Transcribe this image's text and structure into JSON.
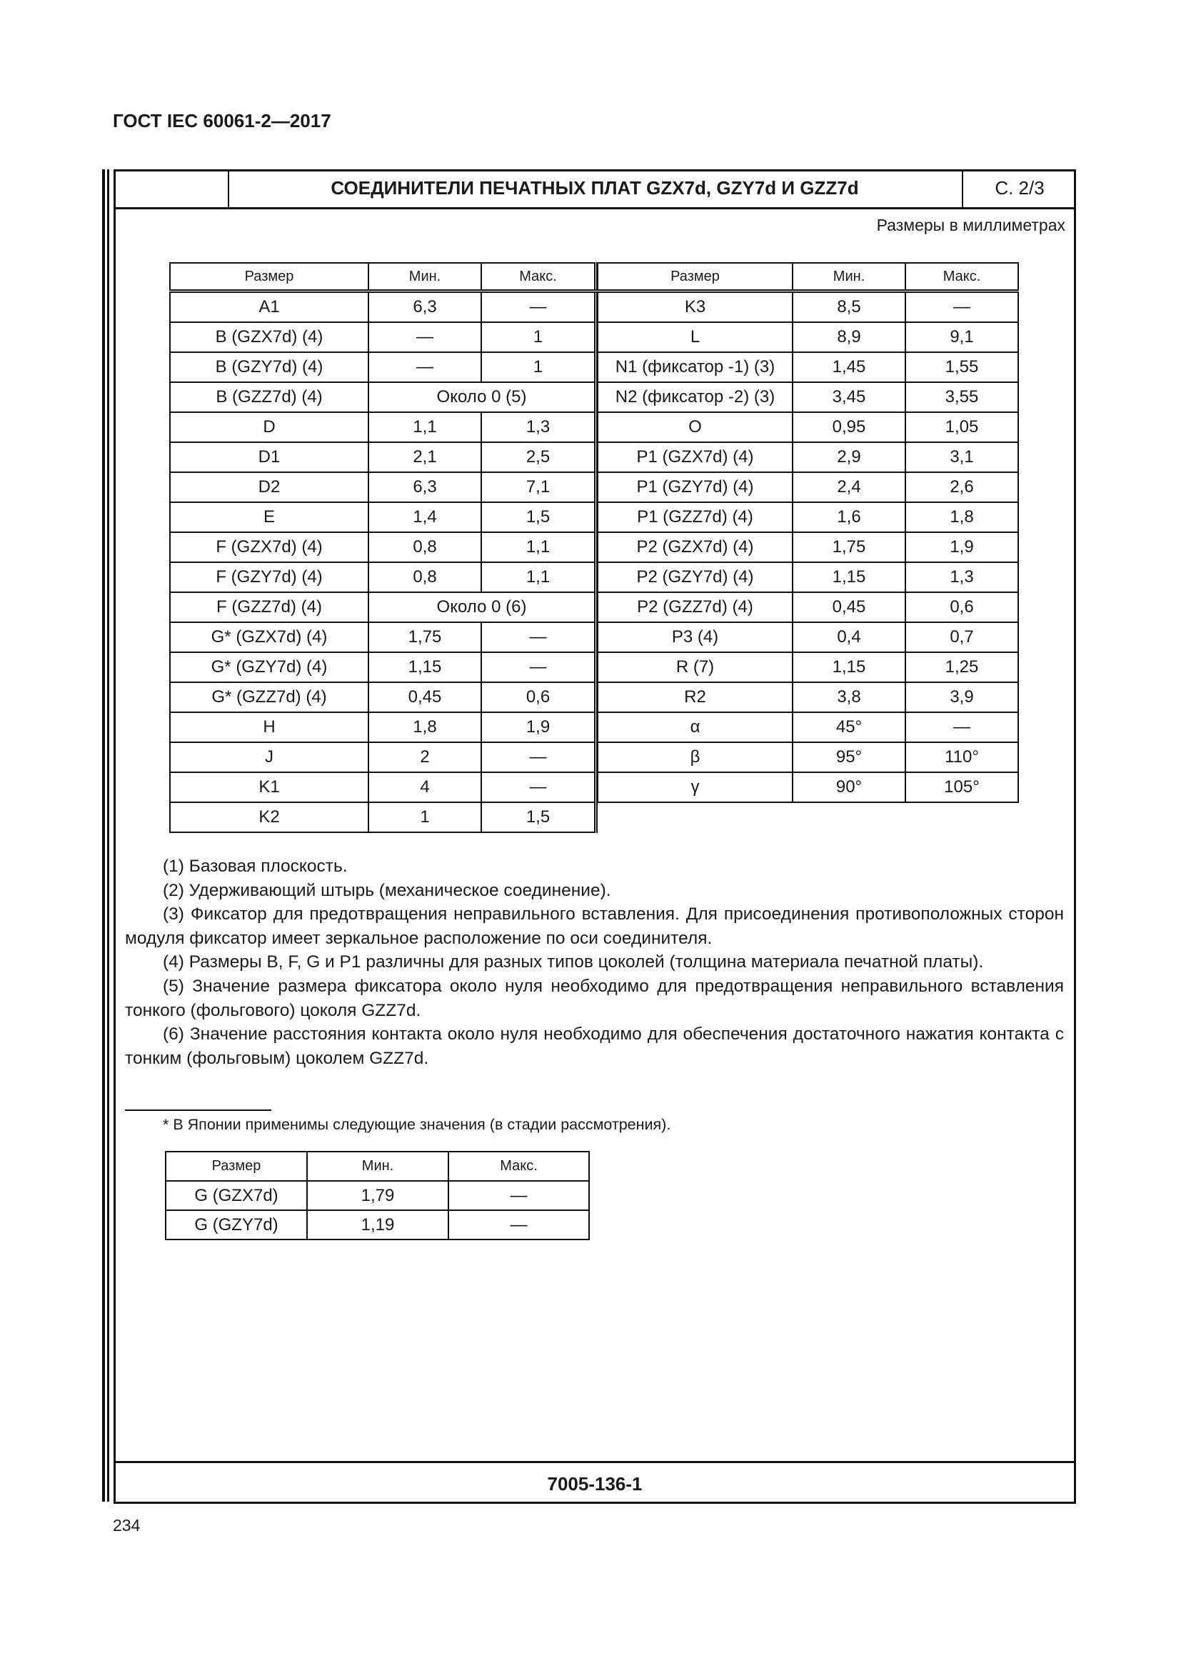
{
  "doc_header": "ГОСТ IEC 60061-2—2017",
  "sheet": {
    "title": "СОЕДИНИТЕЛИ ПЕЧАТНЫХ ПЛАТ GZX7d, GZY7d И GZZ7d",
    "page": "С. 2/3",
    "units": "Размеры в миллиметрах",
    "code": "7005-136-1"
  },
  "table_left": {
    "headers": [
      "Размер",
      "Мин.",
      "Макс."
    ],
    "rows": [
      [
        "A1",
        "6,3",
        "—"
      ],
      [
        "B (GZX7d) (4)",
        "—",
        "1"
      ],
      [
        "B (GZY7d) (4)",
        "—",
        "1"
      ],
      [
        "B (GZZ7d) (4)",
        "Около 0 (5)",
        null
      ],
      [
        "D",
        "1,1",
        "1,3"
      ],
      [
        "D1",
        "2,1",
        "2,5"
      ],
      [
        "D2",
        "6,3",
        "7,1"
      ],
      [
        "E",
        "1,4",
        "1,5"
      ],
      [
        "F (GZX7d) (4)",
        "0,8",
        "1,1"
      ],
      [
        "F (GZY7d) (4)",
        "0,8",
        "1,1"
      ],
      [
        "F (GZZ7d) (4)",
        "Около 0 (6)",
        null
      ],
      [
        "G* (GZX7d) (4)",
        "1,75",
        "—"
      ],
      [
        "G* (GZY7d) (4)",
        "1,15",
        "—"
      ],
      [
        "G* (GZZ7d) (4)",
        "0,45",
        "0,6"
      ],
      [
        "H",
        "1,8",
        "1,9"
      ],
      [
        "J",
        "2",
        "—"
      ],
      [
        "K1",
        "4",
        "—"
      ],
      [
        "K2",
        "1",
        "1,5"
      ]
    ]
  },
  "table_right": {
    "headers": [
      "Размер",
      "Мин.",
      "Макс."
    ],
    "rows": [
      [
        "K3",
        "8,5",
        "—"
      ],
      [
        "L",
        "8,9",
        "9,1"
      ],
      [
        "N1 (фиксатор -1) (3)",
        "1,45",
        "1,55"
      ],
      [
        "N2 (фиксатор -2) (3)",
        "3,45",
        "3,55"
      ],
      [
        "O",
        "0,95",
        "1,05"
      ],
      [
        "P1 (GZX7d) (4)",
        "2,9",
        "3,1"
      ],
      [
        "P1 (GZY7d) (4)",
        "2,4",
        "2,6"
      ],
      [
        "P1 (GZZ7d) (4)",
        "1,6",
        "1,8"
      ],
      [
        "P2 (GZX7d) (4)",
        "1,75",
        "1,9"
      ],
      [
        "P2 (GZY7d) (4)",
        "1,15",
        "1,3"
      ],
      [
        "P2 (GZZ7d) (4)",
        "0,45",
        "0,6"
      ],
      [
        "P3 (4)",
        "0,4",
        "0,7"
      ],
      [
        "R (7)",
        "1,15",
        "1,25"
      ],
      [
        "R2",
        "3,8",
        "3,9"
      ],
      [
        "α",
        "45°",
        "—"
      ],
      [
        "β",
        "95°",
        "110°"
      ],
      [
        "γ",
        "90°",
        "105°"
      ]
    ]
  },
  "notes": [
    "(1) Базовая плоскость.",
    "(2) Удерживающий штырь (механическое соединение).",
    "(3) Фиксатор для предотвращения неправильного вставления. Для присоединения противоположных сторон модуля фиксатор имеет зеркальное расположение по оси соединителя.",
    "(4) Размеры B, F, G и P1 различны для разных типов цоколей (толщина материала печатной платы).",
    "(5) Значение размера фиксатора около нуля необходимо для предотвращения неправильного вставления тонкого (фольгового) цоколя GZZ7d.",
    "(6) Значение расстояния контакта около нуля необходимо для обеспечения достаточного нажатия контакта с тонким (фольговым) цоколем GZZ7d."
  ],
  "footnote": "* В Японии применимы следующие значения (в стадии рассмотрения).",
  "table_small": {
    "headers": [
      "Размер",
      "Мин.",
      "Макс."
    ],
    "rows": [
      [
        "G (GZX7d)",
        "1,79",
        "—"
      ],
      [
        "G (GZY7d)",
        "1,19",
        "—"
      ]
    ]
  },
  "page_number": "234"
}
